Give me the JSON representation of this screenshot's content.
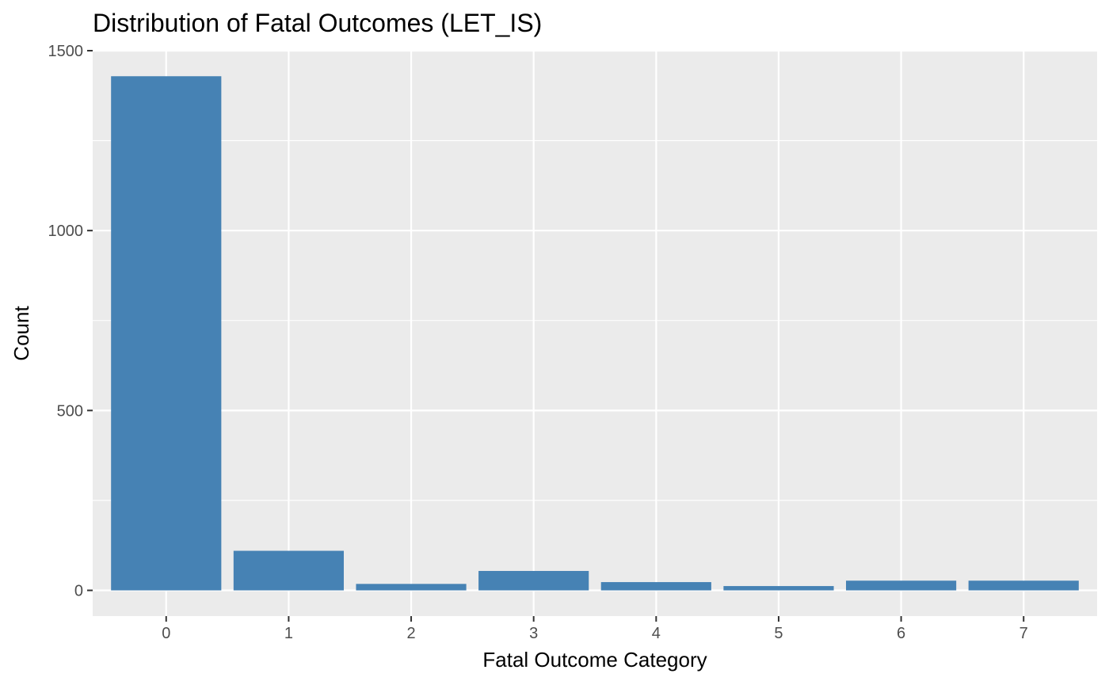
{
  "chart_data": {
    "type": "bar",
    "title": "Distribution of Fatal Outcomes (LET_IS)",
    "xlabel": "Fatal Outcome Category",
    "ylabel": "Count",
    "categories": [
      "0",
      "1",
      "2",
      "3",
      "4",
      "5",
      "6",
      "7"
    ],
    "values": [
      1429,
      110,
      18,
      54,
      23,
      12,
      27,
      27
    ],
    "ylim": [
      -71.5,
      1500
    ],
    "yticks": [
      0,
      500,
      1000,
      1500
    ],
    "ytick_labels": [
      "0",
      "500",
      "1000",
      "1500"
    ],
    "grid": true,
    "legend": "none",
    "colors": {
      "bar": "#4682b4",
      "panel_background": "#ebebeb",
      "grid": "#ffffff",
      "tick_text": "#4d4d4d",
      "tick_mark": "#333333"
    }
  }
}
